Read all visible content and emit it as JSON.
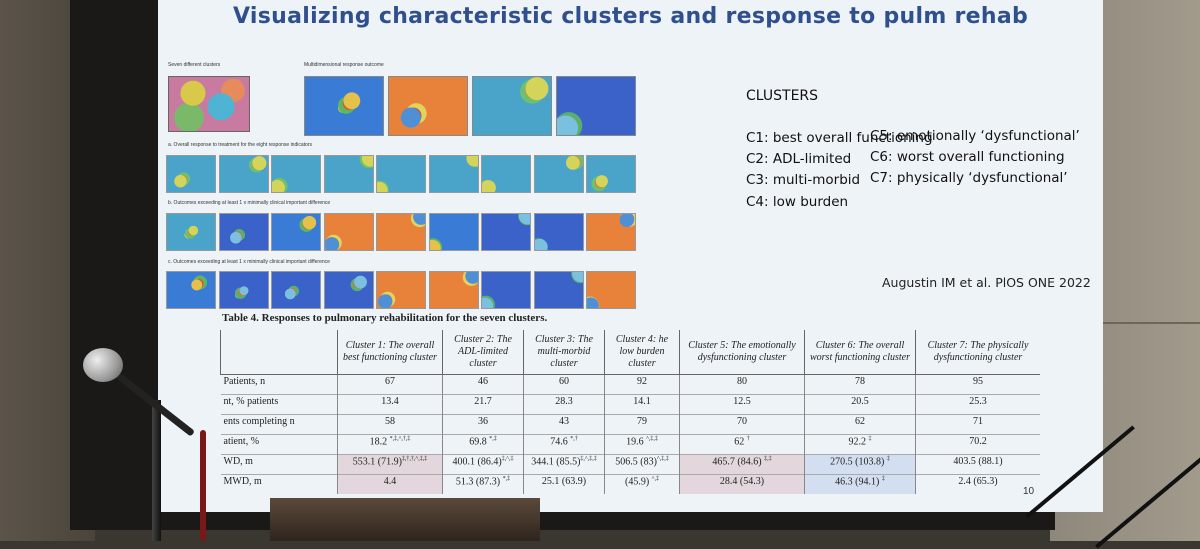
{
  "slide": {
    "title": "Visualizing characteristic clusters and response to pulm rehab",
    "figure_labels": {
      "seven_clusters": "Seven different clusters",
      "multidimensional": "Multidimensional response outcome",
      "a": "a. Overall response to treatment for the eight response indicators",
      "b": "b. Outcomes exceeding at least 1 x minimally clinical important difference",
      "c": "c. Outcomes exceeding at least 1 x minimally clinical important difference"
    },
    "clusters_heading": "CLUSTERS",
    "clusters_left": [
      "C1: best overall functioning",
      "C2: ADL-limited",
      "C3: multi-morbid",
      "C4: low burden"
    ],
    "clusters_right": [
      "C5: emotionally ‘dysfunctional’",
      "C6: worst overall functioning",
      "C7: physically ‘dysfunctional’"
    ],
    "citation": "Augustin IM et al. PlOS ONE 2022",
    "page_number": "10",
    "table": {
      "caption": "Table 4.  Responses to pulmonary rehabilitation for the seven clusters.",
      "headers": [
        "",
        "Cluster 1: The overall best functioning cluster",
        "Cluster 2: The ADL-limited cluster",
        "Cluster 3: The multi-morbid cluster",
        "Cluster 4: he low burden cluster",
        "Cluster 5: The emotionally dysfunctioning cluster",
        "Cluster 6: The overall worst functioning cluster",
        "Cluster 7: The physically dysfunctioning cluster"
      ],
      "rows": [
        {
          "label": "Patients, n",
          "cells": [
            "67",
            "46",
            "60",
            "92",
            "80",
            "78",
            "95"
          ]
        },
        {
          "label": "nt, % patients",
          "cells": [
            "13.4",
            "21.7",
            "28.3",
            "14.1",
            "12.5",
            "20.5",
            "25.3"
          ]
        },
        {
          "label": "ents completing n",
          "cells": [
            "58",
            "36",
            "43",
            "79",
            "70",
            "62",
            "71"
          ]
        },
        {
          "label": "atient, % ",
          "cells": [
            "18.2 ",
            "69.8 ",
            "74.6 ",
            "19.6 ",
            "62 ",
            "92.2 ",
            "70.2"
          ],
          "marks": [
            "*,‡,^,†,‡",
            "*,‡",
            "*,†",
            "^,‡,‡",
            "†",
            "‡",
            ""
          ]
        },
        {
          "label": "WD, m",
          "cells": [
            "553.1 (71.9)",
            "400.1 (86.4)",
            "344.1 (85.5)",
            "506.5 (83)",
            "465.7 (84.6) ",
            "270.5 (103.8) ",
            "403.5 (88.1)"
          ],
          "marks": [
            "‡,†,†,^,‡,‡",
            "‡,^,‡",
            "‡,^,‡,‡",
            "^,‡,‡",
            "‡,‡",
            "‡",
            ""
          ]
        },
        {
          "label": "MWD, m",
          "cells": [
            "4.4 ",
            "51.3 (87.3) ",
            "25.1 (63.9)",
            "(45.9) ",
            "28.4 (54.3)",
            "46.3 (94.1) ",
            "2.4 (65.3)"
          ],
          "marks": [
            "",
            "*,‡",
            "",
            "^,‡",
            "",
            "‡",
            ""
          ]
        }
      ]
    }
  }
}
